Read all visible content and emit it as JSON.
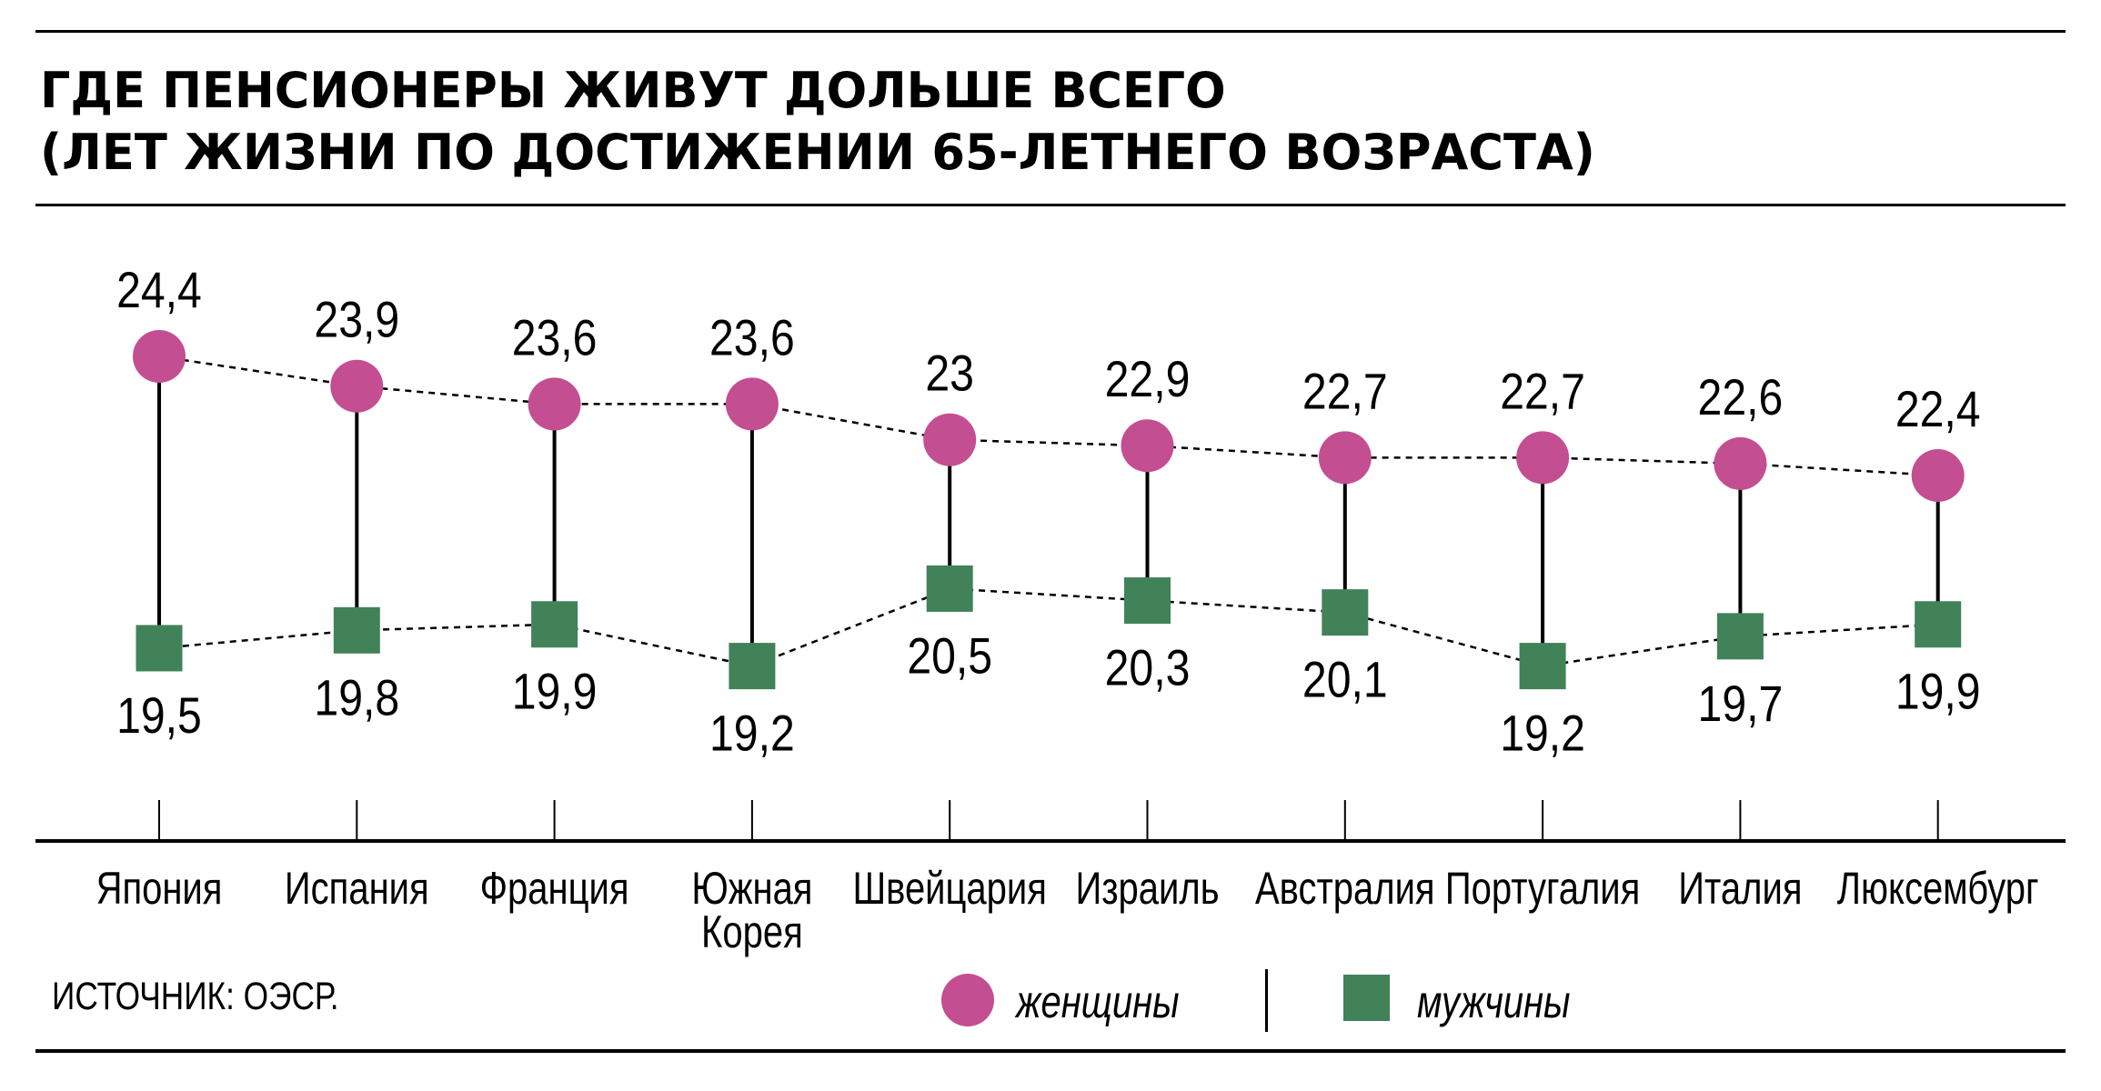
{
  "title": {
    "line1": "ГДЕ ПЕНСИОНЕРЫ ЖИВУТ ДОЛЬШЕ ВСЕГО",
    "line2": "(ЛЕТ ЖИЗНИ ПО ДОСТИЖЕНИИ 65-ЛЕТНЕГО ВОЗРАСТА)"
  },
  "source": "ИСТОЧНИК: ОЭСР.",
  "legend": {
    "women_label": "женщины",
    "men_label": "мужчины"
  },
  "colors": {
    "women": "#C44E92",
    "men": "#418259",
    "lines": "#000000"
  },
  "chart_data": {
    "type": "dumbbell",
    "title": "ГДЕ ПЕНСИОНЕРЫ ЖИВУТ ДОЛЬШЕ ВСЕГО (ЛЕТ ЖИЗНИ ПО ДОСТИЖЕНИИ 65-ЛЕТНЕГО ВОЗРАСТА)",
    "xlabel": "",
    "ylabel": "",
    "grid": false,
    "legend_position": "bottom",
    "categories": [
      [
        "Япония"
      ],
      [
        "Испания"
      ],
      [
        "Франция"
      ],
      [
        "Южная",
        "Корея"
      ],
      [
        "Швейцария"
      ],
      [
        "Израиль"
      ],
      [
        "Австралия"
      ],
      [
        "Португалия"
      ],
      [
        "Италия"
      ],
      [
        "Люксембург"
      ]
    ],
    "series": [
      {
        "name": "женщины",
        "marker": "circle",
        "values": [
          24.4,
          23.9,
          23.6,
          23.6,
          23.0,
          22.9,
          22.7,
          22.7,
          22.6,
          22.4
        ],
        "labels": [
          "24,4",
          "23,9",
          "23,6",
          "23,6",
          "23",
          "22,9",
          "22,7",
          "22,7",
          "22,6",
          "22,4"
        ]
      },
      {
        "name": "мужчины",
        "marker": "square",
        "values": [
          19.5,
          19.8,
          19.9,
          19.2,
          20.5,
          20.3,
          20.1,
          19.2,
          19.7,
          19.9
        ],
        "labels": [
          "19,5",
          "19,8",
          "19,9",
          "19,2",
          "20,5",
          "20,3",
          "20,1",
          "19,2",
          "19,7",
          "19,9"
        ]
      }
    ],
    "source": "ОЭСР"
  }
}
